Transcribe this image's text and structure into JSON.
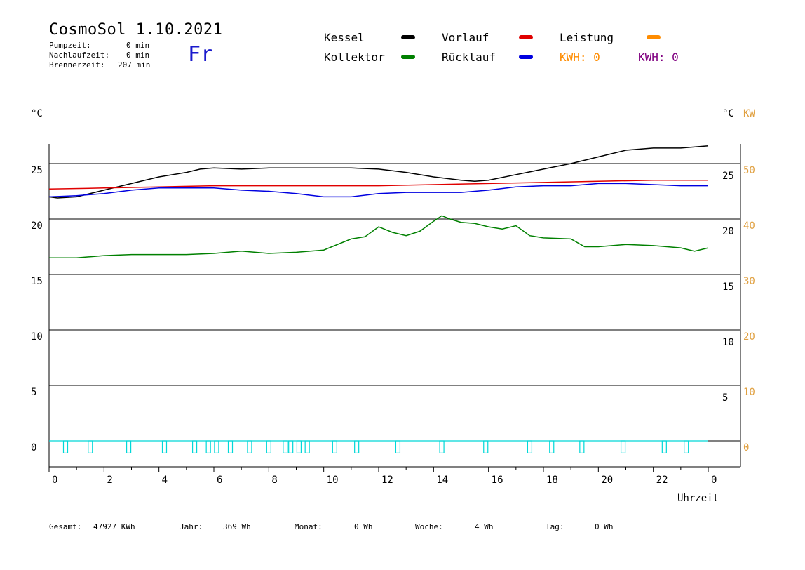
{
  "header": {
    "title": "CosmoSol 1.10.2021",
    "day": "Fr",
    "pumpzeit_label": "Pumpzeit:",
    "pumpzeit_value": "0 min",
    "nachlauf_label": "Nachlaufzeit:",
    "nachlauf_value": "0 min",
    "brenner_label": "Brennerzeit:",
    "brenner_value": "207 min"
  },
  "legend": {
    "kessel": "Kessel",
    "kollektor": "Kollektor",
    "vorlauf": "Vorlauf",
    "ruecklauf": "Rücklauf",
    "leistung": "Leistung",
    "kwh1": "KWH: 0",
    "kwh2": "KWH: 0"
  },
  "colors": {
    "kessel": "#000000",
    "kollektor": "#008000",
    "vorlauf": "#e00000",
    "ruecklauf": "#0000e0",
    "leistung": "#ff8c00",
    "kwh2": "#800080",
    "pump": "#00d8d8",
    "kw_axis": "#e0a040"
  },
  "axes": {
    "left_unit": "°C",
    "right_unit": "°C",
    "kw_unit": "KW",
    "x_label": "Uhrzeit"
  },
  "footer": {
    "gesamt_label": "Gesamt:",
    "gesamt_value": "47927 KWh",
    "jahr_label": "Jahr:",
    "jahr_value": "369 Wh",
    "monat_label": "Monat:",
    "monat_value": "0 Wh",
    "woche_label": "Woche:",
    "woche_value": "4 Wh",
    "tag_label": "Tag:",
    "tag_value": "0 Wh"
  },
  "chart_data": {
    "type": "line",
    "xlabel": "Uhrzeit",
    "ylabel": "°C",
    "xlim": [
      0,
      24
    ],
    "ylim": [
      -2.5,
      27
    ],
    "x_tick_labels": [
      "0",
      "2",
      "4",
      "6",
      "8",
      "10",
      "12",
      "14",
      "16",
      "18",
      "20",
      "22",
      "0"
    ],
    "y_left_ticks": [
      0,
      5,
      10,
      15,
      20,
      25
    ],
    "y_right_ticks_c": [
      5,
      10,
      15,
      20,
      25
    ],
    "y_right_ticks_kw": [
      0,
      10,
      20,
      30,
      40,
      50
    ],
    "grid": true,
    "series": [
      {
        "name": "Kessel",
        "color": "#000000",
        "x": [
          0,
          0.3,
          1,
          2,
          3,
          4,
          5,
          5.5,
          6,
          7,
          8,
          9,
          10,
          11,
          12,
          13,
          14,
          15,
          15.5,
          16,
          17,
          18,
          19,
          20,
          21,
          22,
          23,
          24
        ],
        "y": [
          22,
          21.9,
          22,
          22.6,
          23.2,
          23.8,
          24.2,
          24.5,
          24.6,
          24.5,
          24.6,
          24.6,
          24.6,
          24.6,
          24.5,
          24.2,
          23.8,
          23.5,
          23.4,
          23.5,
          24,
          24.5,
          25,
          25.6,
          26.2,
          26.4,
          26.4,
          26.6
        ]
      },
      {
        "name": "Vorlauf",
        "color": "#e00000",
        "x": [
          0,
          2,
          4,
          6,
          8,
          10,
          12,
          14,
          16,
          18,
          20,
          22,
          24
        ],
        "y": [
          22.7,
          22.8,
          22.9,
          23,
          23,
          23,
          23,
          23.1,
          23.2,
          23.3,
          23.4,
          23.5,
          23.5
        ]
      },
      {
        "name": "Rücklauf",
        "color": "#0000e0",
        "x": [
          0,
          1,
          2,
          3,
          4,
          5,
          6,
          7,
          8,
          9,
          10,
          11,
          12,
          13,
          14,
          15,
          16,
          17,
          18,
          19,
          20,
          21,
          22,
          23,
          24
        ],
        "y": [
          22,
          22.1,
          22.3,
          22.6,
          22.8,
          22.8,
          22.8,
          22.6,
          22.5,
          22.3,
          22,
          22,
          22.3,
          22.4,
          22.4,
          22.4,
          22.6,
          22.9,
          23,
          23,
          23.2,
          23.2,
          23.1,
          23,
          23
        ]
      },
      {
        "name": "Kollektor",
        "color": "#008000",
        "x": [
          0,
          1,
          2,
          3,
          4,
          5,
          6,
          7,
          8,
          9,
          10,
          11,
          11.5,
          12,
          12.5,
          13,
          13.5,
          14,
          14.3,
          14.6,
          15,
          15.5,
          16,
          16.5,
          17,
          17.5,
          18,
          19,
          19.5,
          20,
          21,
          22,
          23,
          23.5,
          24
        ],
        "y": [
          16.5,
          16.5,
          16.7,
          16.8,
          16.8,
          16.8,
          16.9,
          17.1,
          16.9,
          17,
          17.2,
          18.2,
          18.4,
          19.3,
          18.8,
          18.5,
          18.9,
          19.8,
          20.3,
          20,
          19.7,
          19.6,
          19.3,
          19.1,
          19.4,
          18.5,
          18.3,
          18.2,
          17.5,
          17.5,
          17.7,
          17.6,
          17.4,
          17.1,
          17.4
        ]
      }
    ],
    "pump_pulses_x": [
      0.6,
      1.5,
      2.9,
      4.2,
      5.3,
      5.8,
      6.1,
      6.6,
      7.3,
      8,
      8.6,
      8.8,
      9.1,
      9.4,
      10.4,
      11.2,
      12.7,
      14.3,
      15.9,
      17.5,
      18.3,
      19.4,
      20.9,
      22.4,
      23.2
    ],
    "pump_pulse_height": 1.1
  }
}
